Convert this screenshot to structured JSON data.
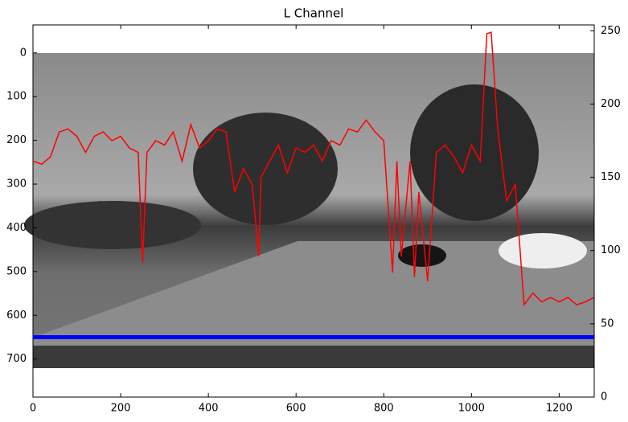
{
  "chart_data": {
    "type": "line",
    "title": "L Channel",
    "x": [
      0,
      20,
      40,
      60,
      80,
      100,
      120,
      140,
      160,
      180,
      200,
      220,
      240,
      250,
      260,
      280,
      300,
      320,
      340,
      360,
      380,
      400,
      420,
      440,
      460,
      480,
      500,
      515,
      520,
      540,
      560,
      580,
      600,
      620,
      640,
      660,
      680,
      700,
      720,
      740,
      760,
      780,
      800,
      820,
      830,
      840,
      860,
      870,
      880,
      900,
      920,
      940,
      960,
      980,
      1000,
      1020,
      1035,
      1045,
      1060,
      1080,
      1100,
      1120,
      1140,
      1160,
      1180,
      1200,
      1220,
      1240,
      1260,
      1279
    ],
    "series": [
      {
        "color": "#ff0000",
        "axis": "y2",
        "values": [
          161,
          159,
          164,
          181,
          183,
          178,
          167,
          178,
          181,
          175,
          178,
          170,
          167,
          92,
          167,
          175,
          172,
          181,
          161,
          186,
          170,
          175,
          183,
          181,
          140,
          156,
          145,
          96,
          150,
          161,
          172,
          153,
          170,
          167,
          172,
          161,
          175,
          172,
          183,
          181,
          189,
          181,
          175,
          85,
          161,
          96,
          161,
          82,
          140,
          79,
          167,
          172,
          164,
          153,
          172,
          161,
          248,
          249,
          183,
          134,
          145,
          63,
          71,
          65,
          68,
          65,
          68,
          63,
          65,
          68
        ]
      }
    ],
    "hline": {
      "value": 650,
      "color": "#0000ff"
    },
    "xlim": [
      0,
      1280
    ],
    "xticks": [
      0,
      200,
      400,
      600,
      800,
      1000,
      1200
    ],
    "ylim": [
      787,
      -64
    ],
    "yticks": [
      0,
      100,
      200,
      300,
      400,
      500,
      600,
      700
    ],
    "y2lim": [
      0,
      254
    ],
    "y2ticks": [
      0,
      50,
      100,
      150,
      200,
      250
    ]
  }
}
